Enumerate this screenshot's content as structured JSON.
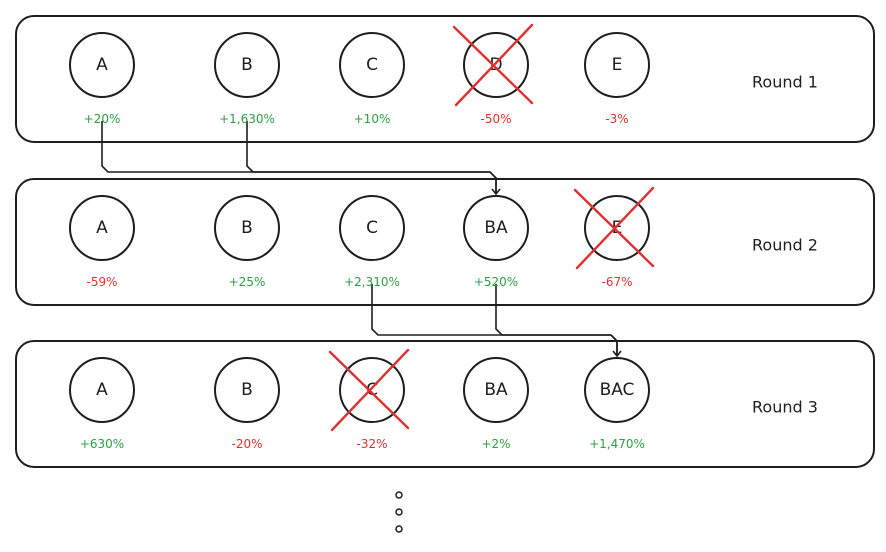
{
  "colors": {
    "positive": "#2f9e44",
    "negative": "#e03131",
    "ink": "#1e1e1e",
    "eliminated_cross": "#e03131"
  },
  "rounds": [
    {
      "title": "Round 1",
      "nodes": [
        {
          "label": "A",
          "change": "+20%",
          "trend": "positive",
          "eliminated": false
        },
        {
          "label": "B",
          "change": "+1,630%",
          "trend": "positive",
          "eliminated": false
        },
        {
          "label": "C",
          "change": "+10%",
          "trend": "positive",
          "eliminated": false
        },
        {
          "label": "D",
          "change": "-50%",
          "trend": "negative",
          "eliminated": true
        },
        {
          "label": "E",
          "change": "-3%",
          "trend": "negative",
          "eliminated": false
        }
      ]
    },
    {
      "title": "Round 2",
      "nodes": [
        {
          "label": "A",
          "change": "-59%",
          "trend": "negative",
          "eliminated": false
        },
        {
          "label": "B",
          "change": "+25%",
          "trend": "positive",
          "eliminated": false
        },
        {
          "label": "C",
          "change": "+2,310%",
          "trend": "positive",
          "eliminated": false
        },
        {
          "label": "BA",
          "change": "+520%",
          "trend": "positive",
          "eliminated": false
        },
        {
          "label": "E",
          "change": "-67%",
          "trend": "negative",
          "eliminated": true
        }
      ]
    },
    {
      "title": "Round 3",
      "nodes": [
        {
          "label": "A",
          "change": "+630%",
          "trend": "positive",
          "eliminated": false
        },
        {
          "label": "B",
          "change": "-20%",
          "trend": "negative",
          "eliminated": false
        },
        {
          "label": "C",
          "change": "-32%",
          "trend": "negative",
          "eliminated": true
        },
        {
          "label": "BA",
          "change": "+2%",
          "trend": "positive",
          "eliminated": false
        },
        {
          "label": "BAC",
          "change": "+1,470%",
          "trend": "positive",
          "eliminated": false
        }
      ]
    }
  ],
  "merges": [
    {
      "from_round": 1,
      "sources": [
        "A",
        "B"
      ],
      "target_round": 2,
      "target": "BA"
    },
    {
      "from_round": 2,
      "sources": [
        "C",
        "BA"
      ],
      "target_round": 3,
      "target": "BAC"
    }
  ]
}
